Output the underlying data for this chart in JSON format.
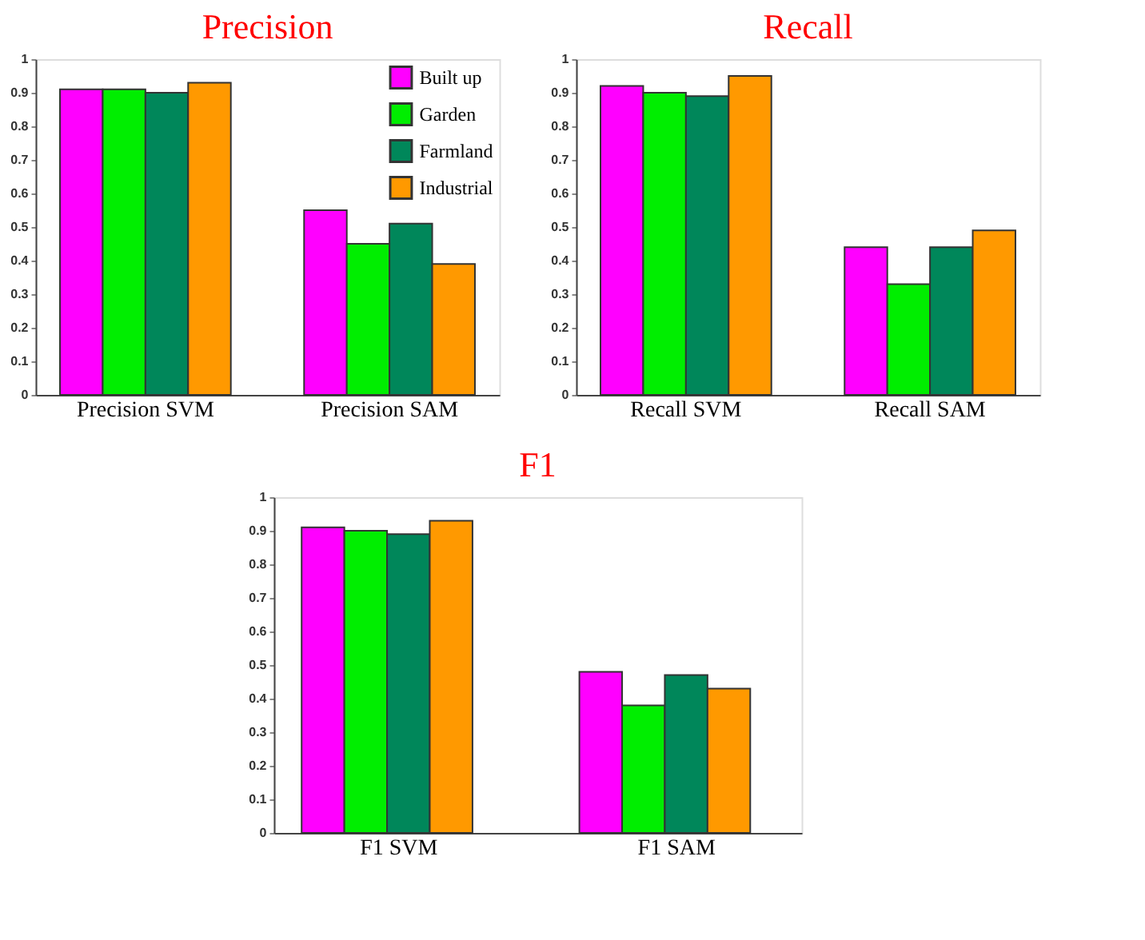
{
  "chart_data": [
    {
      "type": "bar",
      "title": "Precision",
      "categories": [
        "Precision SVM",
        "Precision SAM"
      ],
      "series": [
        {
          "name": "Built up",
          "color": "#ff00ff",
          "values": [
            0.91,
            0.55
          ]
        },
        {
          "name": "Garden",
          "color": "#00ee00",
          "values": [
            0.91,
            0.45
          ]
        },
        {
          "name": "Farmland",
          "color": "#00875a",
          "values": [
            0.9,
            0.51
          ]
        },
        {
          "name": "Industrial",
          "color": "#ff9900",
          "values": [
            0.93,
            0.39
          ]
        }
      ],
      "ylim": [
        0,
        1
      ],
      "yticks": [
        0,
        0.1,
        0.2,
        0.3,
        0.4,
        0.5,
        0.6,
        0.7,
        0.8,
        0.9,
        1
      ],
      "grid": false,
      "legend": "top right"
    },
    {
      "type": "bar",
      "title": "Recall",
      "categories": [
        "Recall SVM",
        "Recall SAM"
      ],
      "series": [
        {
          "color": "#ff00ff",
          "values": [
            0.92,
            0.44
          ]
        },
        {
          "color": "#00ee00",
          "values": [
            0.9,
            0.33
          ]
        },
        {
          "color": "#00875a",
          "values": [
            0.89,
            0.44
          ]
        },
        {
          "color": "#ff9900",
          "values": [
            0.95,
            0.49
          ]
        }
      ],
      "ylim": [
        0,
        1
      ],
      "yticks": [
        0,
        0.1,
        0.2,
        0.3,
        0.4,
        0.5,
        0.6,
        0.7,
        0.8,
        0.9,
        1
      ],
      "grid": false,
      "legend": false
    },
    {
      "type": "bar",
      "title": "F1",
      "categories": [
        "F1 SVM",
        "F1 SAM"
      ],
      "series": [
        {
          "color": "#ff00ff",
          "values": [
            0.91,
            0.48
          ]
        },
        {
          "color": "#00ee00",
          "values": [
            0.9,
            0.38
          ]
        },
        {
          "color": "#00875a",
          "values": [
            0.89,
            0.47
          ]
        },
        {
          "color": "#ff9900",
          "values": [
            0.93,
            0.43
          ]
        }
      ],
      "ylim": [
        0,
        1
      ],
      "yticks": [
        0,
        0.1,
        0.2,
        0.3,
        0.4,
        0.5,
        0.6,
        0.7,
        0.8,
        0.9,
        1
      ],
      "grid": false,
      "legend": false
    }
  ]
}
